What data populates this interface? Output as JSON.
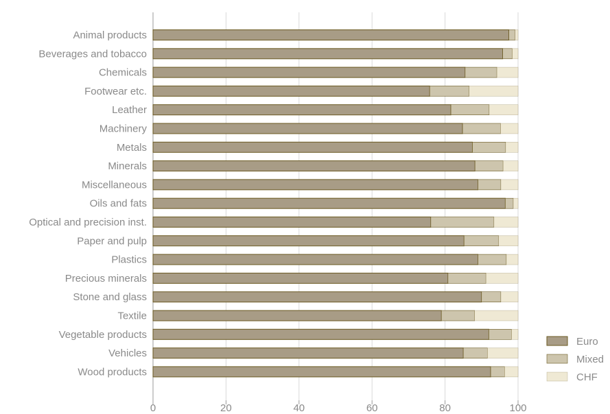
{
  "chart_data": {
    "type": "bar",
    "orientation": "horizontal",
    "stacked": true,
    "categories": [
      "Animal products",
      "Beverages and tobacco",
      "Chemicals",
      "Footwear etc.",
      "Leather",
      "Machinery",
      "Metals",
      "Minerals",
      "Miscellaneous",
      "Oils and fats",
      "Optical and precision inst.",
      "Paper and pulp",
      "Plastics",
      "Precious minerals",
      "Stone and glass",
      "Textile",
      "Vegetable products",
      "Vehicles",
      "Wood products"
    ],
    "series": [
      {
        "name": "Euro",
        "color": "#a89c86",
        "values": [
          97.5,
          95.8,
          85.5,
          75.8,
          81.6,
          84.8,
          87.5,
          88.2,
          89.0,
          96.5,
          76.1,
          85.2,
          89.0,
          80.8,
          90.0,
          79.0,
          92.0,
          85.0,
          92.5
        ]
      },
      {
        "name": "Mixed",
        "color": "#cdc5ad",
        "values": [
          1.7,
          2.6,
          8.7,
          10.8,
          10.5,
          10.4,
          9.1,
          7.7,
          6.3,
          2.2,
          17.3,
          9.5,
          7.8,
          10.4,
          5.3,
          9.1,
          6.2,
          6.6,
          3.8
        ]
      },
      {
        "name": "CHF",
        "color": "#efe9d4",
        "values": [
          0.8,
          1.6,
          5.8,
          13.4,
          7.9,
          4.8,
          3.4,
          4.1,
          4.7,
          1.3,
          6.6,
          5.3,
          3.2,
          8.8,
          4.7,
          11.9,
          1.8,
          8.4,
          3.7
        ]
      }
    ],
    "xlim": [
      0,
      100
    ],
    "xticks": [
      0,
      20,
      40,
      60,
      80,
      100
    ],
    "grid": true,
    "legend_position": "bottom-right",
    "colors": {
      "grid": "#d9d9d9",
      "axis": "#9a9a9a",
      "bar_outline": "#6b5a22",
      "text": "#8a8a8a"
    }
  }
}
